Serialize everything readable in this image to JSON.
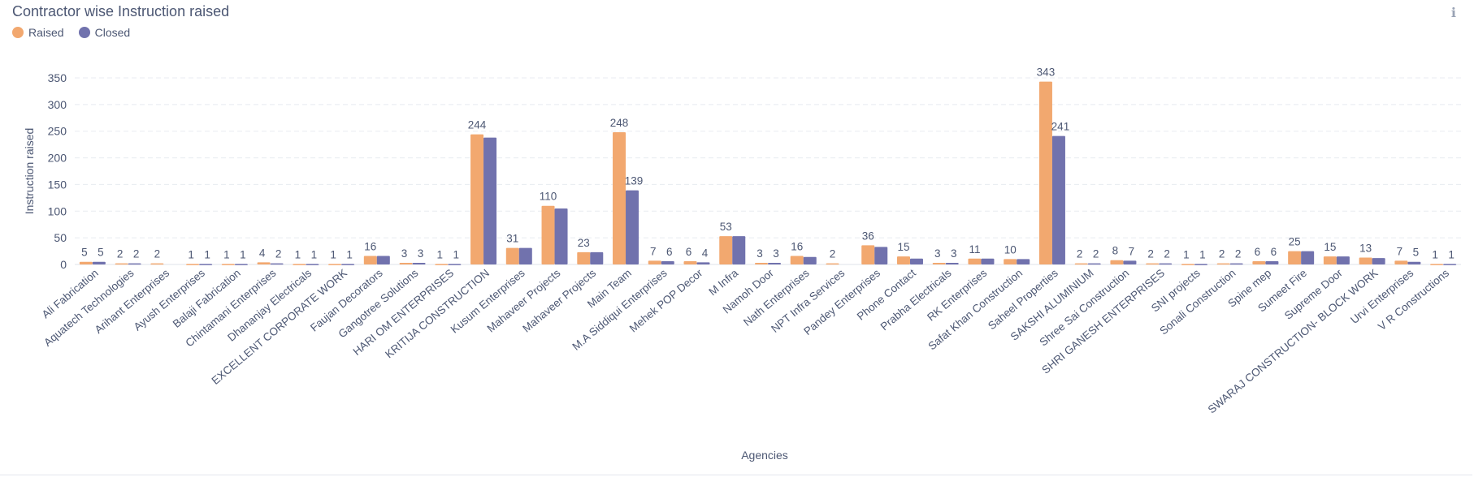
{
  "card": {
    "title": "Contractor wise Instruction raised",
    "info_icon": "info-icon"
  },
  "legend": [
    {
      "label": "Raised",
      "color": "#f2a86f"
    },
    {
      "label": "Closed",
      "color": "#7172ad"
    }
  ],
  "chart_data": {
    "type": "bar",
    "title": "Contractor wise Instruction raised",
    "xlabel": "Agencies",
    "ylabel": "Instruction raised",
    "ylim": [
      0,
      350
    ],
    "yticks": [
      0,
      50,
      100,
      150,
      200,
      250,
      300,
      350
    ],
    "grid": true,
    "legend_position": "top-left",
    "categories": [
      "Ali Fabrication",
      "Aquatech Technologies",
      "Arihant Enterprises",
      "Ayush Enterprises",
      "Balaji Fabrication",
      "Chintamani Enterprises",
      "Dhananjay Electricals",
      "EXCELLENT CORPORATE WORK",
      "Faujan Decorators",
      "Gangotree Solutions",
      "HARI OM ENTERPRISES",
      "KRITIJA CONSTRUCTION",
      "Kusum Enterprises",
      "Mahaveer Projects",
      "Mahaveer  Projects",
      "Main Team",
      "M.A Siddiqui Enterprises",
      "Mehek POP Decor",
      "M Infra",
      "Namoh Door",
      "Nath Enterprises",
      "NPT Infra Services",
      "Pandey Enterprises",
      "Phone Contact",
      "Prabha Electricals",
      "RK Enterprises",
      "Safat Khan Construction",
      "Saheel Properties",
      "SAKSHI ALUMINIUM",
      "Shree Sai Construction",
      "SHRI GANESH ENTERPRISES",
      "SNI projects",
      "Sonali Construction",
      "Spine mep",
      "Sumeet Fire",
      "Supreme Door",
      "SWARAJ CONSTRUCTION- BLOCK WORK",
      "Urvi Enterprises",
      "V R Constructions"
    ],
    "series": [
      {
        "name": "Raised",
        "color": "#f2a86f",
        "values": [
          5,
          2,
          2,
          1,
          1,
          4,
          1,
          1,
          16,
          3,
          1,
          244,
          31,
          110,
          23,
          248,
          7,
          6,
          53,
          3,
          16,
          2,
          36,
          15,
          3,
          11,
          10,
          343,
          2,
          8,
          2,
          1,
          2,
          6,
          25,
          15,
          13,
          7,
          1
        ]
      },
      {
        "name": "Closed",
        "color": "#7172ad",
        "values": [
          5,
          2,
          0,
          1,
          1,
          2,
          1,
          1,
          16,
          3,
          1,
          238,
          31,
          105,
          23,
          139,
          6,
          4,
          53,
          3,
          14,
          0,
          33,
          11,
          3,
          11,
          10,
          241,
          2,
          7,
          2,
          1,
          2,
          6,
          25,
          15,
          12,
          5,
          1
        ]
      }
    ],
    "data_labels": {
      "Raised": [
        "5",
        "2",
        "2",
        "1",
        "1",
        "4",
        "1",
        "1",
        "16",
        "3",
        "1",
        "244",
        "31",
        "110",
        "23",
        "248",
        "7",
        "6",
        "53",
        "3",
        "16",
        "2",
        "36",
        "15",
        "3",
        "11",
        "10",
        "343",
        "2",
        "8",
        "2",
        "1",
        "2",
        "6",
        "25",
        "15",
        "13",
        "7",
        "1"
      ],
      "Closed": [
        "5",
        "2",
        "",
        "1",
        "1",
        "2",
        "1",
        "1",
        "",
        "3",
        "1",
        "",
        "",
        "",
        "",
        "139",
        "6",
        "4",
        "",
        "3",
        "",
        "",
        "",
        "",
        "3",
        "",
        "",
        "241",
        "2",
        "7",
        "2",
        "1",
        "2",
        "6",
        "",
        "",
        "",
        "5",
        "1"
      ]
    }
  }
}
